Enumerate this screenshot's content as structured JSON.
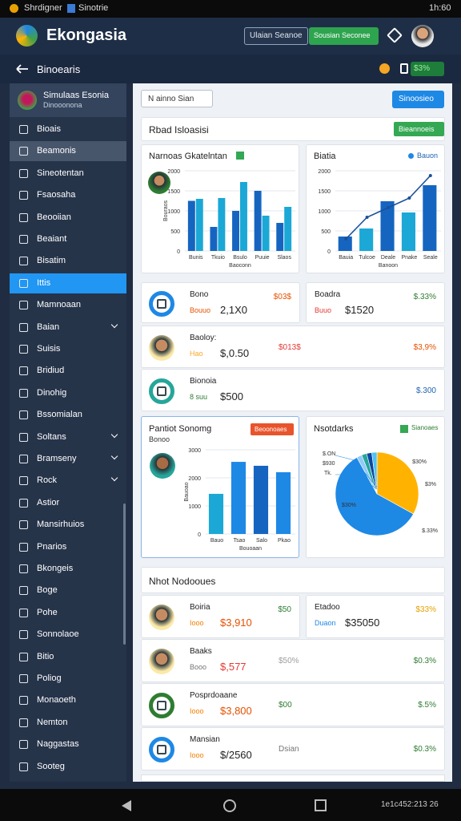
{
  "status": {
    "left": "Shrdigner",
    "app": "Sinotrie",
    "time": "1h:60"
  },
  "appbar": {
    "title": "Ekongasia",
    "search": "Ulaian Seanoe",
    "button": "Sousian Seconee"
  },
  "subbar": {
    "title": "Binoearis",
    "badge": "$3%"
  },
  "sidebar": {
    "user": "Simulaas Esonia",
    "role": "Dinooonona",
    "selected": 1,
    "active": 7,
    "items": [
      {
        "label": "Bioais"
      },
      {
        "label": "Beamonis"
      },
      {
        "label": "Sineotentan"
      },
      {
        "label": "Fsaosaha"
      },
      {
        "label": "Beooiian"
      },
      {
        "label": "Beaiant"
      },
      {
        "label": "Bisatim"
      },
      {
        "label": "Ittis"
      },
      {
        "label": "Mamnoaan"
      },
      {
        "label": "Baian",
        "expand": true
      },
      {
        "label": "Suisis"
      },
      {
        "label": "Bridiud"
      },
      {
        "label": "Dinohig"
      },
      {
        "label": "Bssomialan"
      },
      {
        "label": "Soltans",
        "expand": true
      },
      {
        "label": "Bramseny",
        "expand": true
      },
      {
        "label": "Rock",
        "expand": true
      },
      {
        "label": "Astior"
      },
      {
        "label": "Mansirhuios"
      },
      {
        "label": "Pnarios"
      },
      {
        "label": "Bkongeis"
      },
      {
        "label": "Boge"
      },
      {
        "label": "Pohe"
      },
      {
        "label": "Sonnolaoe"
      },
      {
        "label": "Bitio"
      },
      {
        "label": "Poliog"
      },
      {
        "label": "Monaoeth"
      },
      {
        "label": "Nemton"
      },
      {
        "label": "Naggastas"
      },
      {
        "label": "Sooteg"
      }
    ]
  },
  "toolbar": {
    "dropdown": "N ainno Sian",
    "button": "Sinoosieo"
  },
  "section1": {
    "title": "Rbad Isloasisi",
    "button": "Bieannoeis"
  },
  "section2": {
    "title": "Nhot Nodooues"
  },
  "charts": [
    {
      "type": "bar",
      "title": "Narnoas Gkatelntan",
      "xlabel": "Baoconn",
      "ylabel": "Bouraos",
      "categories": [
        "Bunis",
        "Tkuio",
        "Bsulo",
        "Puuie",
        "Slaos"
      ],
      "ylim": [
        0,
        2000
      ],
      "yticks": [
        0,
        500,
        1000,
        1500,
        2000
      ],
      "series": [
        {
          "color": "#1565c0",
          "values": [
            1250,
            600,
            1000,
            1500,
            700
          ]
        },
        {
          "color": "#1ba8d6",
          "values": [
            1300,
            1320,
            1720,
            880,
            1100
          ]
        }
      ]
    },
    {
      "type": "bar",
      "title": "Biatia",
      "legend": "Bauon",
      "xlabel": "Banoon",
      "categories": [
        "Bauia",
        "Tulcoe",
        "Deale",
        "Pnake",
        "Seale"
      ],
      "ylim": [
        0,
        2000
      ],
      "yticks": [
        0,
        500,
        1000,
        1500,
        2000
      ],
      "series": [
        {
          "colors": [
            "#1565c0",
            "#1ba8d6",
            "#1565c0",
            "#1ba8d6",
            "#1565c0"
          ],
          "values": [
            360,
            560,
            1240,
            960,
            1640
          ]
        },
        {
          "kind": "line",
          "color": "#1a4f9c",
          "values": [
            300,
            840,
            1080,
            1320,
            1880
          ]
        }
      ]
    },
    {
      "type": "bar",
      "title": "Pantiot Sonomg",
      "subtitle": "Bonoo",
      "button": "Beoonoaes",
      "xlabel": "Bouoaan",
      "ylabel": "Bauoao",
      "categories": [
        "Bauo",
        "Tsao",
        "Salo",
        "Pkao"
      ],
      "ylim": [
        0,
        3000
      ],
      "yticks": [
        0,
        1000,
        2000,
        3000
      ],
      "series": [
        {
          "colors": [
            "#1ba8d6",
            "#1e88e5",
            "#1565c0",
            "#1e88e5"
          ],
          "values": [
            1430,
            2570,
            2430,
            2200
          ]
        }
      ]
    },
    {
      "type": "pie",
      "title": "Nsotdarks",
      "badge": "Sianoaes",
      "values": [
        33,
        59,
        2,
        2,
        2,
        2
      ],
      "colors": [
        "#ffb300",
        "#1e88e5",
        "#90caf9",
        "#26a69a",
        "#0d47a1",
        "#4fc3f7"
      ],
      "annotations": [
        "$30%",
        "$3%",
        "$.33%",
        "$30%",
        "$.ON",
        "Tk.",
        "$930"
      ]
    }
  ],
  "items": [
    {
      "icon": "ring",
      "ring": "#1e88e5",
      "title": "Bono",
      "label": "Bouuo",
      "label_color": "#e65100",
      "amount": "2,1X0",
      "tags": [
        {
          "text": "$03$",
          "color": "#e65100"
        }
      ]
    },
    {
      "icon": null,
      "title": "Boadra",
      "label": "Buuo",
      "label_color": "#e53935",
      "amount": "$1520",
      "tags": [
        {
          "text": "$.33%",
          "color": "#2e7d32"
        }
      ]
    },
    {
      "icon": "avatar",
      "title": "Baoloy:",
      "label": "Hao",
      "label_color": "#f9a825",
      "amount": "$,0.50",
      "tags": [
        {
          "text": "$013$",
          "color": "#e53935"
        },
        {
          "text": "$3,9%",
          "color": "#e65100"
        }
      ]
    },
    {
      "icon": "ring",
      "ring": "#26a69a",
      "title": "Bionoia",
      "label": "8 suu",
      "label_color": "#2e7d32",
      "amount": "$500",
      "tags": [
        {
          "text": "$.300",
          "color": "#1e63b0"
        }
      ]
    },
    {
      "icon": "avatar",
      "title": "Boiria",
      "label": "Iooo",
      "label_color": "#f57c00",
      "amount": "$3,910",
      "amount_color": "#e65100",
      "tags": [
        {
          "text": "$50",
          "color": "#2e7d32"
        }
      ]
    },
    {
      "icon": null,
      "title": "Etadoo",
      "label": "Duaon",
      "label_color": "#1e88e5",
      "amount": "$35050",
      "tags": [
        {
          "text": "$33%",
          "color": "#e6a100"
        }
      ]
    },
    {
      "icon": "avatar",
      "title": "Baaks",
      "label": "Booo",
      "label_color": "#757575",
      "amount": "$,577",
      "amount_color": "#e53935",
      "tags": [
        {
          "text": "$50%",
          "color": "#9e9e9e"
        },
        {
          "text": "$0.3%",
          "color": "#2e7d32"
        }
      ]
    },
    {
      "icon": "ring",
      "ring": "#2e7d32",
      "title": "Posprdoaane",
      "label": "Iooo",
      "label_color": "#f57c00",
      "amount": "$3,800",
      "amount_color": "#e65100",
      "tags": [
        {
          "text": "$00",
          "color": "#2e7d32"
        },
        {
          "text": "$.5%",
          "color": "#2e7d32"
        }
      ]
    },
    {
      "icon": "ring",
      "ring": "#1e88e5",
      "title": "Mansian",
      "label": "Iooo",
      "label_color": "#f57c00",
      "amount": "$/2560",
      "tags": [
        {
          "text": "Dsian",
          "color": "#757575"
        },
        {
          "text": "$0.3%",
          "color": "#2e7d32"
        }
      ]
    }
  ],
  "nav": {
    "clock": "1e1c452:213 26"
  }
}
